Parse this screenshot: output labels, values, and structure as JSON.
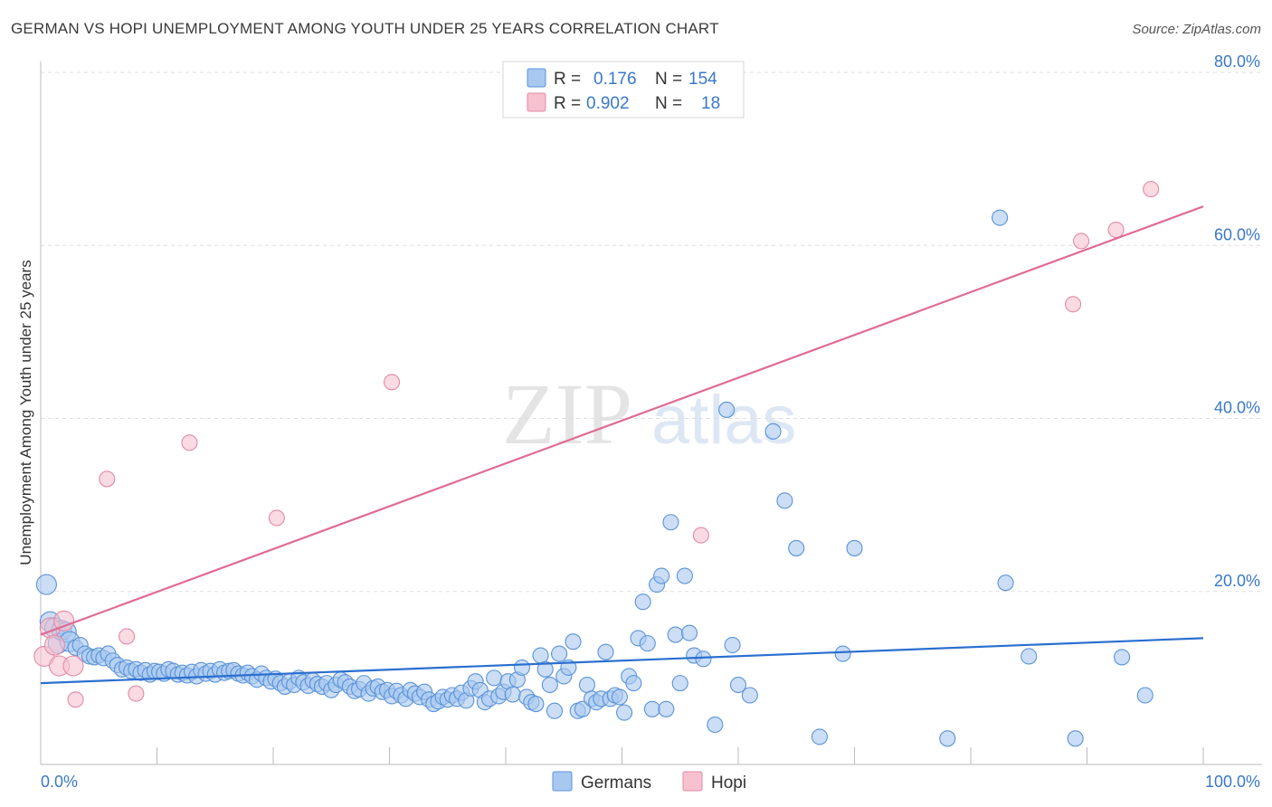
{
  "title": "GERMAN VS HOPI UNEMPLOYMENT AMONG YOUTH UNDER 25 YEARS CORRELATION CHART",
  "source": "Source: ZipAtlas.com",
  "watermark": {
    "zip": "ZIP",
    "atlas": "atlas"
  },
  "colors": {
    "german_fill": "#a9c8f0",
    "german_stroke": "#5b93d8",
    "german_line": "#2a6fcf",
    "hopi_fill": "#f7c1d0",
    "hopi_stroke": "#e28aa6",
    "hopi_line": "#e06b95",
    "axis_label": "#3a78c9",
    "grid": "#dddddd"
  },
  "legend": {
    "german": {
      "r_label": "R =",
      "r_value": "0.176",
      "n_label": "N =",
      "n_value": "154"
    },
    "hopi": {
      "r_label": "R =",
      "r_value": "0.902",
      "n_label": "N =",
      "n_value": "18"
    }
  },
  "bottom_legend": [
    "Germans",
    "Hopi"
  ],
  "chart_data": {
    "type": "scatter",
    "xlabel": "",
    "ylabel": "Unemployment Among Youth under 25 years",
    "xlim": [
      0,
      100
    ],
    "ylim": [
      0,
      80
    ],
    "x_tick_labels": [
      "0.0%",
      "100.0%"
    ],
    "y_ticks": [
      20,
      40,
      60,
      80
    ],
    "y_tick_labels": [
      "20.0%",
      "40.0%",
      "60.0%",
      "80.0%"
    ],
    "grid": true,
    "legend_placement": "top-center",
    "series": [
      {
        "name": "Germans",
        "trend": {
          "x": [
            0,
            100
          ],
          "y": [
            9.4,
            14.6
          ]
        },
        "points": [
          [
            0.5,
            20.8
          ],
          [
            0.8,
            16.5
          ],
          [
            1.2,
            15.8
          ],
          [
            1.5,
            14.0
          ],
          [
            1.8,
            15.5
          ],
          [
            2.2,
            15.3
          ],
          [
            2.5,
            14.2
          ],
          [
            3.0,
            13.5
          ],
          [
            3.4,
            13.8
          ],
          [
            3.8,
            12.8
          ],
          [
            4.2,
            12.5
          ],
          [
            4.6,
            12.4
          ],
          [
            5.0,
            12.6
          ],
          [
            5.4,
            12.3
          ],
          [
            5.8,
            12.8
          ],
          [
            6.2,
            12.0
          ],
          [
            6.6,
            11.5
          ],
          [
            7.0,
            11.0
          ],
          [
            7.4,
            11.2
          ],
          [
            7.8,
            10.8
          ],
          [
            8.2,
            11.0
          ],
          [
            8.6,
            10.6
          ],
          [
            9.0,
            10.9
          ],
          [
            9.4,
            10.4
          ],
          [
            9.8,
            10.8
          ],
          [
            10.2,
            10.7
          ],
          [
            10.6,
            10.5
          ],
          [
            11.0,
            11.0
          ],
          [
            11.4,
            10.8
          ],
          [
            11.8,
            10.4
          ],
          [
            12.2,
            10.6
          ],
          [
            12.6,
            10.3
          ],
          [
            13.0,
            10.7
          ],
          [
            13.4,
            10.2
          ],
          [
            13.8,
            10.9
          ],
          [
            14.2,
            10.5
          ],
          [
            14.6,
            10.8
          ],
          [
            15.0,
            10.4
          ],
          [
            15.4,
            11.0
          ],
          [
            15.8,
            10.6
          ],
          [
            16.2,
            10.8
          ],
          [
            16.6,
            10.9
          ],
          [
            17.0,
            10.5
          ],
          [
            17.4,
            10.3
          ],
          [
            17.8,
            10.6
          ],
          [
            18.2,
            10.2
          ],
          [
            18.6,
            9.8
          ],
          [
            19.0,
            10.5
          ],
          [
            19.4,
            10.0
          ],
          [
            19.8,
            9.6
          ],
          [
            20.2,
            9.9
          ],
          [
            20.6,
            9.4
          ],
          [
            21.0,
            9.0
          ],
          [
            21.4,
            9.6
          ],
          [
            21.8,
            9.2
          ],
          [
            22.2,
            10.0
          ],
          [
            22.6,
            9.5
          ],
          [
            23.0,
            9.1
          ],
          [
            23.4,
            9.7
          ],
          [
            23.8,
            9.3
          ],
          [
            24.2,
            9.0
          ],
          [
            24.6,
            9.4
          ],
          [
            25.0,
            8.6
          ],
          [
            25.4,
            9.2
          ],
          [
            25.8,
            9.8
          ],
          [
            26.2,
            9.5
          ],
          [
            26.6,
            9.0
          ],
          [
            27.0,
            8.5
          ],
          [
            27.4,
            8.7
          ],
          [
            27.8,
            9.4
          ],
          [
            28.2,
            8.2
          ],
          [
            28.6,
            8.8
          ],
          [
            29.0,
            9.0
          ],
          [
            29.4,
            8.4
          ],
          [
            29.8,
            8.6
          ],
          [
            30.2,
            7.9
          ],
          [
            30.6,
            8.5
          ],
          [
            31.0,
            8.0
          ],
          [
            31.4,
            7.6
          ],
          [
            31.8,
            8.6
          ],
          [
            32.2,
            8.2
          ],
          [
            32.6,
            7.8
          ],
          [
            33.0,
            8.4
          ],
          [
            33.4,
            7.5
          ],
          [
            33.8,
            7.0
          ],
          [
            34.2,
            7.3
          ],
          [
            34.6,
            7.8
          ],
          [
            35.0,
            7.5
          ],
          [
            35.4,
            8.0
          ],
          [
            35.8,
            7.6
          ],
          [
            36.2,
            8.3
          ],
          [
            36.6,
            7.4
          ],
          [
            37.0,
            8.8
          ],
          [
            37.4,
            9.6
          ],
          [
            37.8,
            8.6
          ],
          [
            38.2,
            7.2
          ],
          [
            38.6,
            7.6
          ],
          [
            39.0,
            10.0
          ],
          [
            39.4,
            7.9
          ],
          [
            39.8,
            8.4
          ],
          [
            40.2,
            9.6
          ],
          [
            40.6,
            8.1
          ],
          [
            41.0,
            9.8
          ],
          [
            41.4,
            11.2
          ],
          [
            41.8,
            7.8
          ],
          [
            42.2,
            7.2
          ],
          [
            42.6,
            7.0
          ],
          [
            43.0,
            12.6
          ],
          [
            43.4,
            11.0
          ],
          [
            43.8,
            9.2
          ],
          [
            44.2,
            6.2
          ],
          [
            44.6,
            12.8
          ],
          [
            45.0,
            10.2
          ],
          [
            45.4,
            11.2
          ],
          [
            45.8,
            14.2
          ],
          [
            46.2,
            6.2
          ],
          [
            46.6,
            6.4
          ],
          [
            47.0,
            9.2
          ],
          [
            47.4,
            7.6
          ],
          [
            47.8,
            7.2
          ],
          [
            48.2,
            7.6
          ],
          [
            48.6,
            13.0
          ],
          [
            49.0,
            7.6
          ],
          [
            49.4,
            8.0
          ],
          [
            49.8,
            7.8
          ],
          [
            50.2,
            6.0
          ],
          [
            50.6,
            10.2
          ],
          [
            51.0,
            9.4
          ],
          [
            51.4,
            14.6
          ],
          [
            51.8,
            18.8
          ],
          [
            52.2,
            14.0
          ],
          [
            52.6,
            6.4
          ],
          [
            53.0,
            20.8
          ],
          [
            53.4,
            21.8
          ],
          [
            53.8,
            6.4
          ],
          [
            54.2,
            28.0
          ],
          [
            54.6,
            15.0
          ],
          [
            55.0,
            9.4
          ],
          [
            55.4,
            21.8
          ],
          [
            55.8,
            15.2
          ],
          [
            56.2,
            12.6
          ],
          [
            57.0,
            12.2
          ],
          [
            58.0,
            4.6
          ],
          [
            59.0,
            41.0
          ],
          [
            59.5,
            13.8
          ],
          [
            60.0,
            9.2
          ],
          [
            61.0,
            8.0
          ],
          [
            63.0,
            38.5
          ],
          [
            64.0,
            30.5
          ],
          [
            65.0,
            25.0
          ],
          [
            67.0,
            3.2
          ],
          [
            69.0,
            12.8
          ],
          [
            70.0,
            25.0
          ],
          [
            82.5,
            63.2
          ],
          [
            83.0,
            21.0
          ],
          [
            85.0,
            12.5
          ],
          [
            78.0,
            3.0
          ],
          [
            89.0,
            3.0
          ],
          [
            93.0,
            12.4
          ],
          [
            95.0,
            8.0
          ]
        ]
      },
      {
        "name": "Hopi",
        "trend": {
          "x": [
            0,
            100
          ],
          "y": [
            15.0,
            64.5
          ]
        },
        "points": [
          [
            0.3,
            12.5
          ],
          [
            0.8,
            15.8
          ],
          [
            1.2,
            13.8
          ],
          [
            1.6,
            11.4
          ],
          [
            2.0,
            16.6
          ],
          [
            2.8,
            11.4
          ],
          [
            3.0,
            7.5
          ],
          [
            5.7,
            33.0
          ],
          [
            7.4,
            14.8
          ],
          [
            8.2,
            8.2
          ],
          [
            12.8,
            37.2
          ],
          [
            20.3,
            28.5
          ],
          [
            30.2,
            44.2
          ],
          [
            56.8,
            26.5
          ],
          [
            88.8,
            53.2
          ],
          [
            89.5,
            60.5
          ],
          [
            92.5,
            61.8
          ],
          [
            95.5,
            66.5
          ]
        ]
      }
    ]
  }
}
